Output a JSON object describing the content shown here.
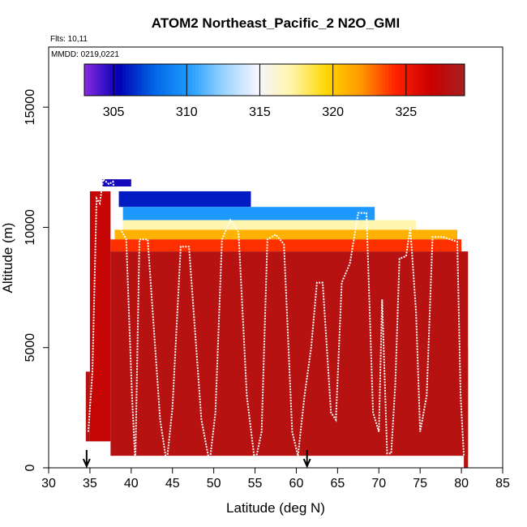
{
  "chart_data": {
    "type": "heatmap",
    "title": "ATOM2 Northeast_Pacific_2 N2O_GMI",
    "flights_label": "Flts: 10,11",
    "mmdd_label": "MMDD: 0219,0221",
    "xlabel": "Latitude (deg N)",
    "ylabel": "Altitude (m)",
    "xlim": [
      30,
      85
    ],
    "ylim": [
      0,
      17500
    ],
    "x_ticks": [
      30,
      35,
      40,
      45,
      50,
      55,
      60,
      65,
      70,
      75,
      80,
      85
    ],
    "y_ticks": [
      0,
      5000,
      10000,
      15000
    ],
    "grid": false,
    "colorbar": {
      "range": [
        303,
        329
      ],
      "ticks": [
        305,
        310,
        315,
        320,
        325
      ],
      "placement": "top",
      "colors": [
        "#8a2be2",
        "#0000b4",
        "#0064e6",
        "#1e9bff",
        "#96d2ff",
        "#f5f5ff",
        "#fff5aa",
        "#ffd700",
        "#ff9900",
        "#ff2200",
        "#cc0000",
        "#a52020"
      ]
    },
    "field": {
      "description_free": true,
      "columns": [
        {
          "lat": [
            34.5,
            35
          ],
          "top": 4000,
          "bottom": 1100,
          "value": 328
        },
        {
          "lat": [
            35,
            37.5
          ],
          "top": 11500,
          "bottom": 1100,
          "value": 327
        },
        {
          "lat": [
            37.5,
            80.8
          ],
          "top": 9000,
          "bottom": 500,
          "value": 328
        },
        {
          "lat": [
            80.3,
            80.8
          ],
          "top": 5000,
          "bottom": 0,
          "value": 328
        }
      ],
      "layers": [
        {
          "lat": [
            36.5,
            40
          ],
          "alt": [
            11700,
            12000
          ],
          "value": 305
        },
        {
          "lat": [
            38.5,
            54.5
          ],
          "alt": [
            10850,
            11500
          ],
          "value": 306
        },
        {
          "lat": [
            39,
            69.5
          ],
          "alt": [
            10300,
            10850
          ],
          "value": 310
        },
        {
          "lat": [
            39,
            74.5
          ],
          "alt": [
            9900,
            10300
          ],
          "value": 317
        },
        {
          "lat": [
            38,
            79.5
          ],
          "alt": [
            9500,
            9900
          ],
          "value": 321
        },
        {
          "lat": [
            37.5,
            80
          ],
          "alt": [
            9000,
            9500
          ],
          "value": 324
        }
      ]
    },
    "flight_track": {
      "lat": [
        34.8,
        35.3,
        35.8,
        36.2,
        36.6,
        37.3,
        37.8,
        38.6,
        39.4,
        40.1,
        40.5,
        41.0,
        42.0,
        43.5,
        44.3,
        45.0,
        46.0,
        47.0,
        48.5,
        49.5,
        50.2,
        51.0,
        52.0,
        53.0,
        54.0,
        55.0,
        55.8,
        56.5,
        57.5,
        58.5,
        59.5,
        60.2,
        61.0,
        61.8,
        62.5,
        63.2,
        64.2,
        64.8,
        65.5,
        66.5,
        67.5,
        68.5,
        69.3,
        70.0,
        70.4,
        71.0,
        71.5,
        72.0,
        72.5,
        73.3,
        73.8,
        74.5,
        75.0,
        75.8,
        76.5,
        77.8,
        79.5,
        79.9,
        80.3
      ],
      "alt": [
        1500,
        4000,
        11200,
        11000,
        12000,
        11800,
        11900,
        10000,
        9500,
        3000,
        200,
        9500,
        9500,
        2000,
        200,
        2500,
        9200,
        9200,
        2000,
        200,
        2300,
        9500,
        10300,
        9800,
        3000,
        200,
        1500,
        9500,
        9700,
        9300,
        1500,
        500,
        3000,
        5000,
        7700,
        7700,
        2300,
        2000,
        7700,
        8500,
        10600,
        10600,
        2300,
        1500,
        7000,
        600,
        600,
        3500,
        8700,
        8800,
        10000,
        6500,
        1500,
        3000,
        9600,
        9600,
        9400,
        3000,
        500
      ]
    },
    "markers": [
      {
        "lat": 34.6,
        "label": "arrow"
      },
      {
        "lat": 61.3,
        "label": "arrow"
      }
    ]
  }
}
